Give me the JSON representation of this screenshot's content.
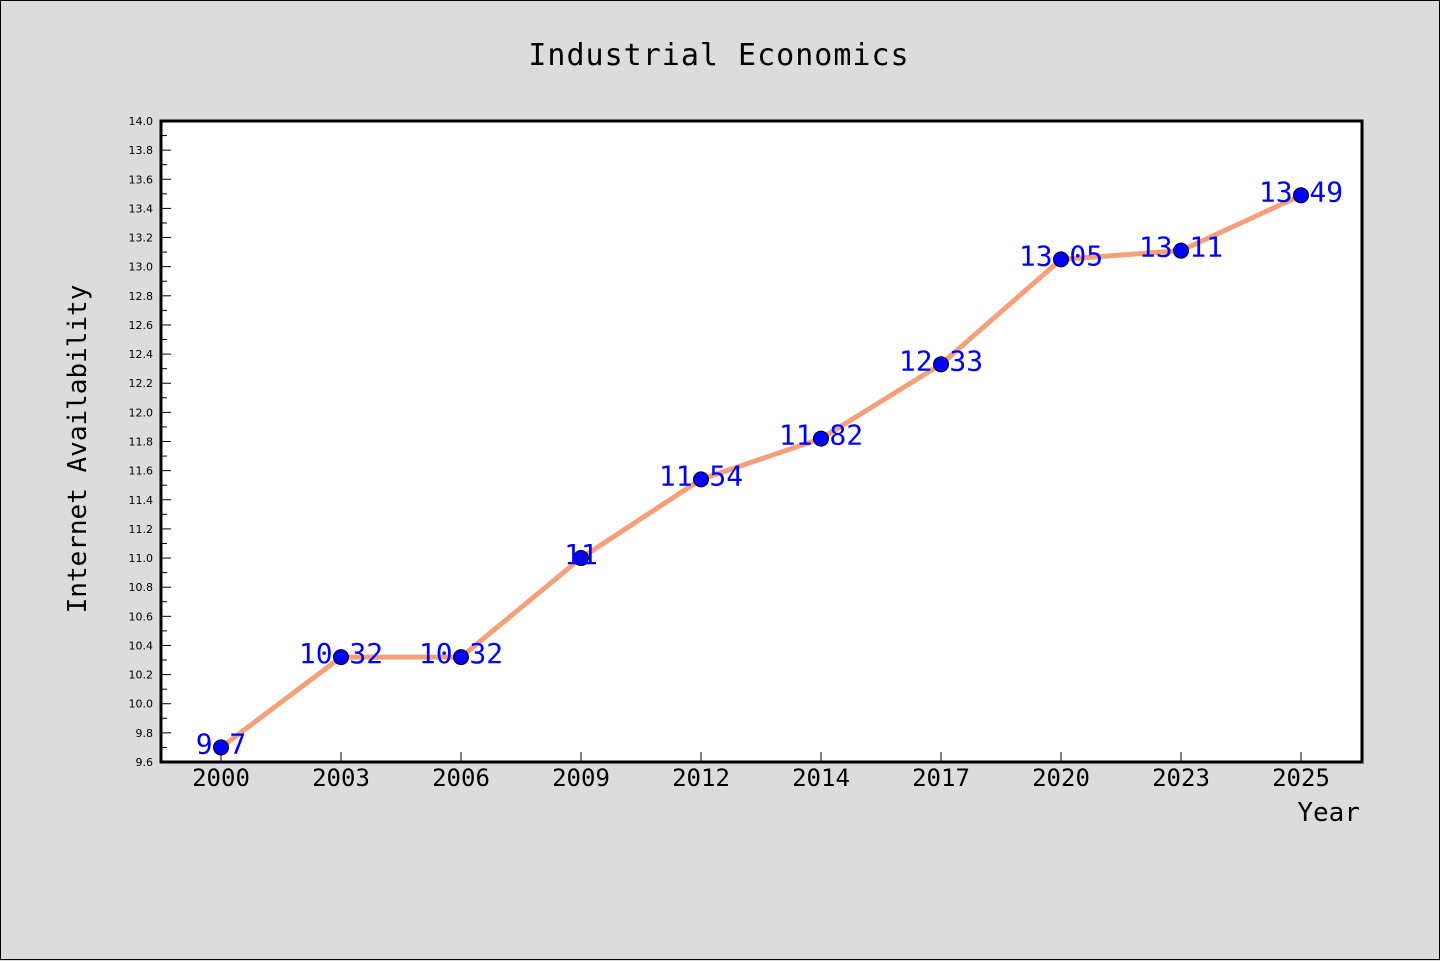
{
  "chart_data": {
    "type": "line",
    "title": "Industrial Economics",
    "xlabel": "Year",
    "ylabel": "Internet Availability",
    "categories": [
      "2000",
      "2003",
      "2006",
      "2009",
      "2012",
      "2014",
      "2017",
      "2020",
      "2023",
      "2025"
    ],
    "series": [
      {
        "values": [
          9.7,
          10.32,
          10.32,
          11,
          11.54,
          11.82,
          12.33,
          13.05,
          13.11,
          13.49
        ],
        "data_labels": [
          "9.7",
          "10.32",
          "10.32",
          "11",
          "11.54",
          "11.82",
          "12.33",
          "13.05",
          "13.11",
          "13.49"
        ],
        "line_color": "#f4a07a",
        "marker_color": "#0000ff"
      }
    ],
    "ylim": [
      9.6,
      14.0
    ],
    "yticks": [
      "9.6",
      "9.8",
      "10.0",
      "10.2",
      "10.4",
      "10.6",
      "10.8",
      "11.0",
      "11.2",
      "11.4",
      "11.6",
      "11.8",
      "12.0",
      "12.2",
      "12.4",
      "12.6",
      "12.8",
      "13.0",
      "13.2",
      "13.4",
      "13.6",
      "13.8",
      "14.0"
    ],
    "grid": false,
    "legend": "none"
  },
  "colors": {
    "background": "#dcdcdc",
    "plot_background": "#ffffff",
    "line": "#f4a07a",
    "marker": "#0000ff",
    "label": "#0000ff"
  }
}
